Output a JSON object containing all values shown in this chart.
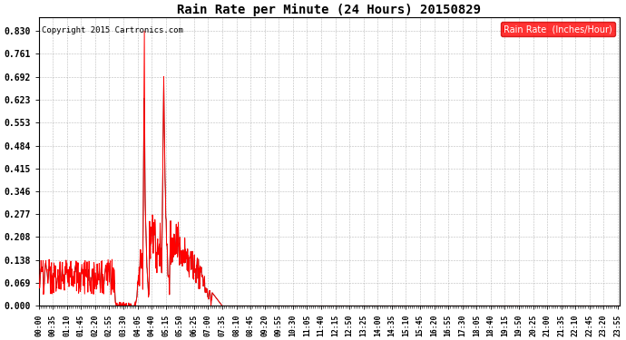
{
  "title": "Rain Rate per Minute (24 Hours) 20150829",
  "copyright_text": "Copyright 2015 Cartronics.com",
  "legend_label": "Rain Rate  (Inches/Hour)",
  "legend_bg": "#ff0000",
  "legend_text_color": "#ffffff",
  "line_color": "#ff0000",
  "dark_line_color": "#333333",
  "background_color": "#ffffff",
  "grid_color": "#aaaaaa",
  "yticks": [
    0.0,
    0.069,
    0.138,
    0.208,
    0.277,
    0.346,
    0.415,
    0.484,
    0.553,
    0.623,
    0.692,
    0.761,
    0.83
  ],
  "ylim": [
    0.0,
    0.87
  ],
  "total_minutes": 1440,
  "xtick_interval": 35,
  "figsize": [
    6.9,
    3.75
  ],
  "dpi": 100
}
